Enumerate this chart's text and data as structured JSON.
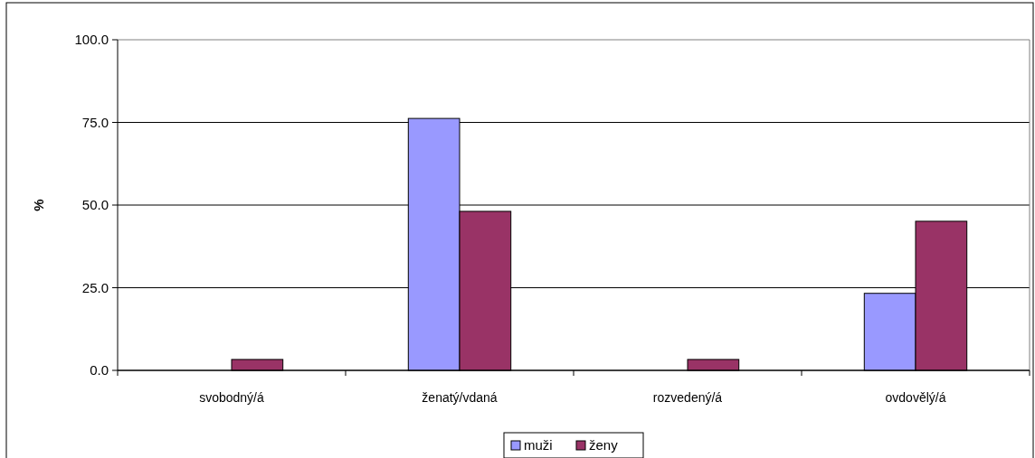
{
  "chart_data": {
    "type": "bar",
    "ylabel": "%",
    "categories": [
      "svobodný/á",
      "ženatý/vdaná",
      "rozvedený/á",
      "ovdovělý/á"
    ],
    "series": [
      {
        "name": "muži",
        "color": "#9999ff",
        "values": [
          0,
          76.2,
          0,
          23.3
        ]
      },
      {
        "name": "ženy",
        "color": "#993366",
        "values": [
          3.3,
          48.1,
          3.3,
          45.1
        ]
      }
    ],
    "ylim": [
      0,
      100
    ],
    "yticks": [
      {
        "value": 0,
        "label": "0.0"
      },
      {
        "value": 25,
        "label": "25.0"
      },
      {
        "value": 50,
        "label": "50.0"
      },
      {
        "value": 75,
        "label": "75.0"
      },
      {
        "value": 100,
        "label": "100.0"
      }
    ],
    "grid": "y",
    "legend": "bottom"
  }
}
